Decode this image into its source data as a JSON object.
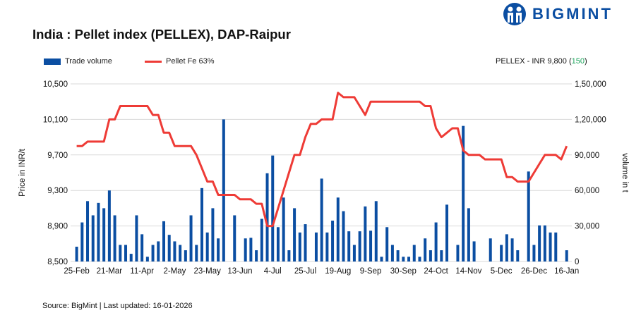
{
  "title": "India : Pellet index (PELLEX), DAP-Raipur",
  "brand": "BIGMINT",
  "colors": {
    "bar": "#0b4ea2",
    "line": "#ee3b36",
    "change": "#1ba35b",
    "brand": "#0b4ea2",
    "grid": "#d9d9d9"
  },
  "headline": {
    "label": "PELLEX - INR 9,800",
    "open": "(",
    "change": "150",
    "close": ")"
  },
  "source": "Source: BigMint | Last updated: 16-01-2026",
  "chart_data": {
    "type": "bar+line",
    "grid": true,
    "legend_placement": "top-left",
    "ylabel_left": "Price in INR/t",
    "ylabel_right": "volume in t",
    "ylim_left": [
      8500,
      10500
    ],
    "ylim_right": [
      0,
      150000
    ],
    "yticks_left": [
      "8,500",
      "8,900",
      "9,300",
      "9,700",
      "10,100",
      "10,500"
    ],
    "yticks_right": [
      "0",
      "30,000",
      "60,000",
      "90,000",
      "1,20,000",
      "1,50,000"
    ],
    "xtick_labels": [
      "25-Feb",
      "21-Mar",
      "11-Apr",
      "2-May",
      "23-May",
      "13-Jun",
      "4-Jul",
      "25-Jul",
      "19-Aug",
      "9-Sep",
      "30-Sep",
      "24-Oct",
      "14-Nov",
      "5-Dec",
      "26-Dec",
      "16-Jan"
    ],
    "series": [
      {
        "name": "Trade volume",
        "axis": "right",
        "type": "bar",
        "values": [
          12500,
          33000,
          51000,
          39000,
          49500,
          45000,
          60000,
          39000,
          14000,
          14000,
          6500,
          39000,
          23000,
          4000,
          14000,
          17000,
          34000,
          22500,
          17000,
          14000,
          9500,
          39000,
          14000,
          62000,
          24500,
          45000,
          19500,
          120000,
          0,
          39000,
          0,
          19500,
          20000,
          9500,
          36000,
          74500,
          89500,
          29000,
          54000,
          9500,
          45000,
          24500,
          31500,
          0,
          24500,
          70000,
          24500,
          34500,
          54000,
          42500,
          25500,
          14000,
          25500,
          46500,
          26000,
          51000,
          4000,
          29000,
          14000,
          9500,
          4000,
          4000,
          14000,
          4000,
          19500,
          9500,
          33000,
          9500,
          48000,
          0,
          14000,
          114500,
          45000,
          17000,
          0,
          0,
          19500,
          0,
          14000,
          23000,
          19500,
          9500,
          0,
          76000,
          14000,
          30500,
          30500,
          24500,
          24500,
          0,
          9500
        ]
      },
      {
        "name": "Pellet Fe 63%",
        "axis": "left",
        "type": "line",
        "values": [
          9800,
          9800,
          9850,
          9850,
          9850,
          9850,
          10100,
          10100,
          10250,
          10250,
          10250,
          10250,
          10250,
          10250,
          10150,
          10150,
          9950,
          9950,
          9800,
          9800,
          9800,
          9800,
          9700,
          9550,
          9400,
          9400,
          9250,
          9250,
          9250,
          9250,
          9200,
          9200,
          9200,
          9150,
          9150,
          8900,
          8900,
          9100,
          9300,
          9500,
          9700,
          9700,
          9900,
          10050,
          10050,
          10100,
          10100,
          10100,
          10400,
          10350,
          10350,
          10350,
          10250,
          10150,
          10300,
          10300,
          10300,
          10300,
          10300,
          10300,
          10300,
          10300,
          10300,
          10300,
          10250,
          10250,
          10000,
          9900,
          9950,
          10000,
          10000,
          9750,
          9700,
          9700,
          9700,
          9650,
          9650,
          9650,
          9650,
          9450,
          9450,
          9400,
          9400,
          9400,
          9500,
          9600,
          9700,
          9700,
          9700,
          9650,
          9800
        ]
      }
    ]
  }
}
